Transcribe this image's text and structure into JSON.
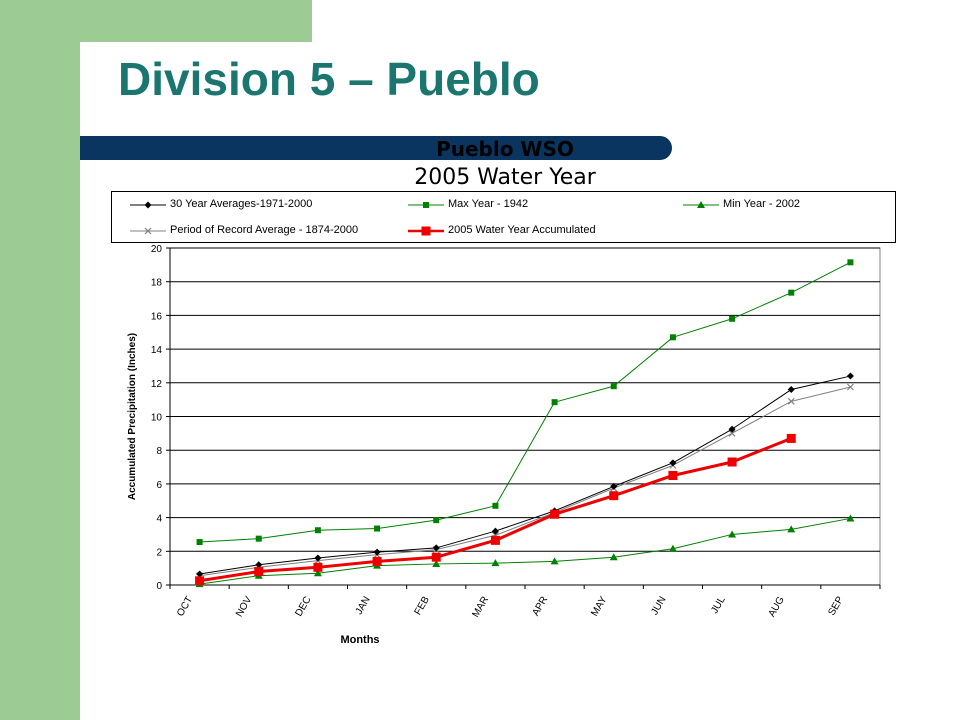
{
  "slide": {
    "title": "Division 5 – Pueblo",
    "colors": {
      "band": "#9ccc94",
      "title": "#1b7670",
      "title_bar": "#0a3561"
    }
  },
  "chart_data": {
    "type": "line",
    "title": "Pueblo WSO",
    "subtitle": "2005 Water Year",
    "xlabel": "Months",
    "ylabel": "Accumulated Precipitation (Inches)",
    "categories": [
      "OCT",
      "NOV",
      "DEC",
      "JAN",
      "FEB",
      "MAR",
      "APR",
      "MAY",
      "JUN",
      "JUL",
      "AUG",
      "SEP"
    ],
    "ylim": [
      0,
      20
    ],
    "yticks": [
      "0",
      "2",
      "4",
      "6",
      "8",
      "10",
      "12",
      "14",
      "16",
      "18",
      "20"
    ],
    "grid": true,
    "legend_position": "top",
    "series": [
      {
        "name": "30 Year Averages-1971-2000",
        "color": "#000000",
        "marker": "diamond",
        "width": 1,
        "values": [
          0.65,
          1.2,
          1.6,
          1.95,
          2.2,
          3.2,
          4.4,
          5.85,
          7.25,
          9.25,
          11.6,
          12.4
        ]
      },
      {
        "name": "Max Year - 1942",
        "color": "#008000",
        "marker": "square",
        "width": 1,
        "values": [
          2.55,
          2.75,
          3.25,
          3.35,
          3.85,
          4.7,
          10.85,
          11.8,
          14.7,
          15.8,
          17.35,
          19.15
        ]
      },
      {
        "name": "Min Year - 2002",
        "color": "#008000",
        "marker": "triangle",
        "width": 1,
        "values": [
          0.05,
          0.55,
          0.7,
          1.15,
          1.25,
          1.3,
          1.4,
          1.65,
          2.15,
          3.0,
          3.3,
          3.95
        ]
      },
      {
        "name": "Period of Record Average - 1874-2000",
        "color": "#808080",
        "marker": "x",
        "width": 1,
        "values": [
          0.55,
          1.05,
          1.45,
          1.8,
          2.1,
          2.95,
          4.3,
          5.75,
          7.1,
          9.0,
          10.9,
          11.75
        ]
      },
      {
        "name": "2005 Water Year Accumulated",
        "color": "#ee0000",
        "marker": "bigsquare",
        "width": 3,
        "values": [
          0.25,
          0.8,
          1.05,
          1.4,
          1.65,
          2.65,
          4.2,
          5.3,
          6.5,
          7.3,
          8.7,
          null
        ]
      }
    ]
  }
}
